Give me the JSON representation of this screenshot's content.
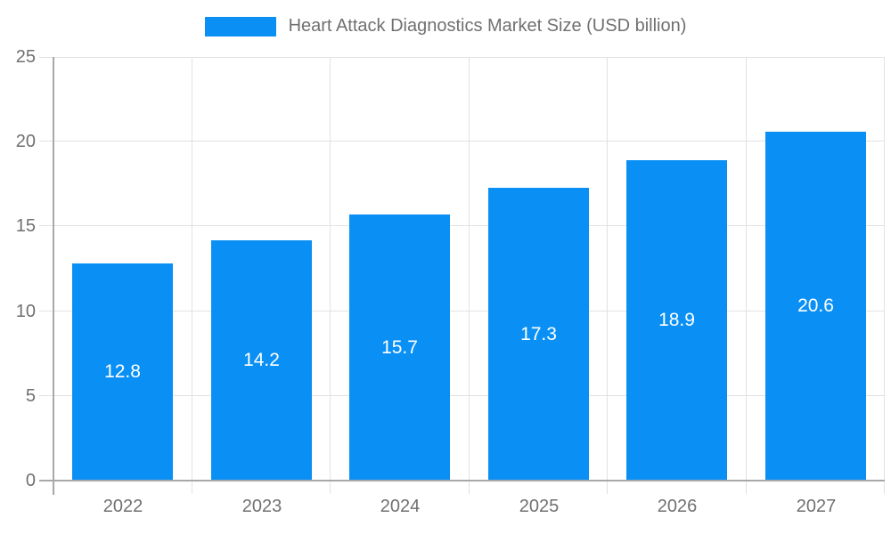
{
  "legend": {
    "label": "Heart Attack Diagnostics Market Size (USD billion)"
  },
  "colors": {
    "bar": "#0a90f5",
    "value_text": "#ffffff",
    "axis_text": "#707070",
    "grid_line": "#e2e2e2",
    "axis_line": "#a8a8a8"
  },
  "chart_data": {
    "type": "bar",
    "title": "Heart Attack Diagnostics Market Size (USD billion)",
    "categories": [
      "2022",
      "2023",
      "2024",
      "2025",
      "2026",
      "2027"
    ],
    "values": [
      12.8,
      14.2,
      15.7,
      17.3,
      18.9,
      20.6
    ],
    "series_name": "Heart Attack Diagnostics Market Size (USD billion)",
    "xlabel": "",
    "ylabel": "",
    "ylim": [
      0,
      25
    ],
    "yticks": [
      0,
      5,
      10,
      15,
      20,
      25
    ],
    "grid": true,
    "legend_position": "top-center",
    "value_labels": "inside-center",
    "bar_color": "#0a90f5"
  }
}
